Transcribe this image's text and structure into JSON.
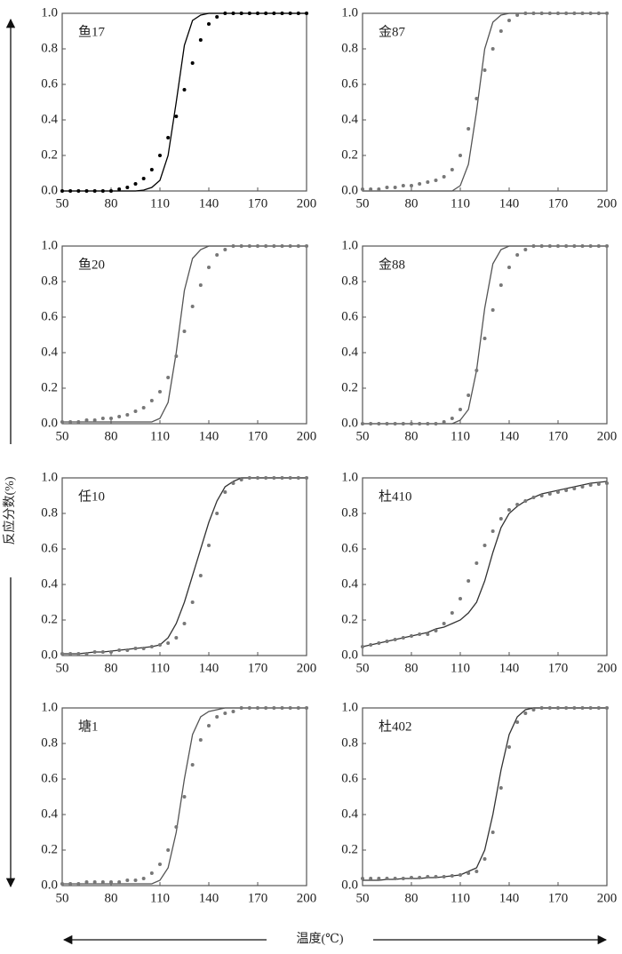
{
  "shared_axes": {
    "xlabel": "温度(℃)",
    "ylabel": "反应分数(%)"
  },
  "chart_data": [
    {
      "type": "line",
      "title": "鱼17",
      "xlim": [
        50,
        200
      ],
      "xticks": [
        50,
        80,
        110,
        140,
        170,
        200
      ],
      "ylim": [
        0,
        1
      ],
      "yticks": [
        {
          "value": 0,
          "label": "0.0"
        },
        {
          "value": 0.2,
          "label": "0.2"
        },
        {
          "value": 0.4,
          "label": "0.4"
        },
        {
          "value": 0.6,
          "label": "0.6"
        },
        {
          "value": 0.8,
          "label": "0.8"
        },
        {
          "value": 1,
          "label": "1.0"
        }
      ],
      "x": [
        50,
        55,
        60,
        65,
        70,
        75,
        80,
        85,
        90,
        95,
        100,
        105,
        110,
        115,
        120,
        125,
        130,
        135,
        140,
        145,
        150,
        155,
        160,
        165,
        170,
        175,
        180,
        185,
        190,
        195,
        200
      ],
      "series": [
        {
          "style": "line",
          "color": "#000000",
          "values": [
            0,
            0,
            0,
            0,
            0,
            0,
            0,
            0,
            0,
            0,
            0.005,
            0.02,
            0.06,
            0.2,
            0.5,
            0.82,
            0.96,
            0.99,
            1,
            1,
            1,
            1,
            1,
            1,
            1,
            1,
            1,
            1,
            1,
            1,
            1
          ]
        },
        {
          "style": "markers",
          "color": "#000000",
          "values": [
            0,
            0,
            0,
            0,
            0,
            0,
            0,
            0.01,
            0.02,
            0.04,
            0.07,
            0.12,
            0.2,
            0.3,
            0.42,
            0.57,
            0.72,
            0.85,
            0.94,
            0.98,
            1,
            1,
            1,
            1,
            1,
            1,
            1,
            1,
            1,
            1,
            1
          ]
        }
      ]
    },
    {
      "type": "line",
      "title": "金87",
      "xlim": [
        50,
        200
      ],
      "xticks": [
        50,
        80,
        110,
        140,
        170,
        200
      ],
      "ylim": [
        0,
        1
      ],
      "yticks": [
        {
          "value": 0,
          "label": "0.0"
        },
        {
          "value": 0.2,
          "label": "0.2"
        },
        {
          "value": 0.4,
          "label": "0.4"
        },
        {
          "value": 0.6,
          "label": "0.6"
        },
        {
          "value": 0.8,
          "label": "0.8"
        },
        {
          "value": 1,
          "label": "1.0"
        }
      ],
      "x": [
        50,
        55,
        60,
        65,
        70,
        75,
        80,
        85,
        90,
        95,
        100,
        105,
        110,
        115,
        120,
        125,
        130,
        135,
        140,
        145,
        150,
        155,
        160,
        165,
        170,
        175,
        180,
        185,
        190,
        195,
        200
      ],
      "series": [
        {
          "style": "line",
          "color": "#555555",
          "values": [
            0,
            0,
            0,
            0,
            0,
            0,
            0,
            0,
            0,
            0,
            0,
            0,
            0.03,
            0.15,
            0.45,
            0.8,
            0.95,
            0.99,
            1,
            1,
            1,
            1,
            1,
            1,
            1,
            1,
            1,
            1,
            1,
            1,
            1
          ]
        },
        {
          "style": "markers",
          "color": "#777777",
          "values": [
            0.01,
            0.01,
            0.01,
            0.02,
            0.02,
            0.03,
            0.03,
            0.04,
            0.05,
            0.06,
            0.08,
            0.12,
            0.2,
            0.35,
            0.52,
            0.68,
            0.8,
            0.9,
            0.96,
            0.99,
            1,
            1,
            1,
            1,
            1,
            1,
            1,
            1,
            1,
            1,
            1
          ]
        }
      ]
    },
    {
      "type": "line",
      "title": "鱼20",
      "xlim": [
        50,
        200
      ],
      "xticks": [
        50,
        80,
        110,
        140,
        170,
        200
      ],
      "ylim": [
        0,
        1
      ],
      "yticks": [
        {
          "value": 0,
          "label": "0.0"
        },
        {
          "value": 0.2,
          "label": "0.2"
        },
        {
          "value": 0.4,
          "label": "0.4"
        },
        {
          "value": 0.6,
          "label": "0.6"
        },
        {
          "value": 0.8,
          "label": "0.8"
        },
        {
          "value": 1,
          "label": "1.0"
        }
      ],
      "x": [
        50,
        55,
        60,
        65,
        70,
        75,
        80,
        85,
        90,
        95,
        100,
        105,
        110,
        115,
        120,
        125,
        130,
        135,
        140,
        145,
        150,
        155,
        160,
        165,
        170,
        175,
        180,
        185,
        190,
        195,
        200
      ],
      "series": [
        {
          "style": "line",
          "color": "#555555",
          "values": [
            0.01,
            0.01,
            0.01,
            0.01,
            0.01,
            0.01,
            0.01,
            0.01,
            0.01,
            0.01,
            0.01,
            0.01,
            0.03,
            0.12,
            0.4,
            0.75,
            0.93,
            0.98,
            1,
            1,
            1,
            1,
            1,
            1,
            1,
            1,
            1,
            1,
            1,
            1,
            1
          ]
        },
        {
          "style": "markers",
          "color": "#777777",
          "values": [
            0.01,
            0.01,
            0.01,
            0.02,
            0.02,
            0.03,
            0.03,
            0.04,
            0.05,
            0.07,
            0.09,
            0.13,
            0.18,
            0.26,
            0.38,
            0.52,
            0.66,
            0.78,
            0.88,
            0.95,
            0.98,
            1,
            1,
            1,
            1,
            1,
            1,
            1,
            1,
            1,
            1
          ]
        }
      ]
    },
    {
      "type": "line",
      "title": "金88",
      "xlim": [
        50,
        200
      ],
      "xticks": [
        50,
        80,
        110,
        140,
        170,
        200
      ],
      "ylim": [
        0,
        1
      ],
      "yticks": [
        {
          "value": 0,
          "label": "0.0"
        },
        {
          "value": 0.2,
          "label": "0.2"
        },
        {
          "value": 0.4,
          "label": "0.4"
        },
        {
          "value": 0.6,
          "label": "0.6"
        },
        {
          "value": 0.8,
          "label": "0.8"
        },
        {
          "value": 1,
          "label": "1.0"
        }
      ],
      "x": [
        50,
        55,
        60,
        65,
        70,
        75,
        80,
        85,
        90,
        95,
        100,
        105,
        110,
        115,
        120,
        125,
        130,
        135,
        140,
        145,
        150,
        155,
        160,
        165,
        170,
        175,
        180,
        185,
        190,
        195,
        200
      ],
      "series": [
        {
          "style": "line",
          "color": "#555555",
          "values": [
            0,
            0,
            0,
            0,
            0,
            0,
            0,
            0,
            0,
            0,
            0,
            0,
            0.02,
            0.08,
            0.3,
            0.65,
            0.9,
            0.98,
            1,
            1,
            1,
            1,
            1,
            1,
            1,
            1,
            1,
            1,
            1,
            1,
            1
          ]
        },
        {
          "style": "markers",
          "color": "#777777",
          "values": [
            0,
            0,
            0,
            0,
            0,
            0,
            0,
            0,
            0,
            0,
            0.01,
            0.03,
            0.08,
            0.16,
            0.3,
            0.48,
            0.64,
            0.78,
            0.88,
            0.95,
            0.98,
            1,
            1,
            1,
            1,
            1,
            1,
            1,
            1,
            1,
            1
          ]
        }
      ]
    },
    {
      "type": "line",
      "title": "任10",
      "xlim": [
        50,
        200
      ],
      "xticks": [
        50,
        80,
        110,
        140,
        170,
        200
      ],
      "ylim": [
        0,
        1
      ],
      "yticks": [
        {
          "value": 0,
          "label": "0.0"
        },
        {
          "value": 0.2,
          "label": "0.2"
        },
        {
          "value": 0.4,
          "label": "0.4"
        },
        {
          "value": 0.6,
          "label": "0.6"
        },
        {
          "value": 0.8,
          "label": "0.8"
        },
        {
          "value": 1,
          "label": "1.0"
        }
      ],
      "x": [
        50,
        55,
        60,
        65,
        70,
        75,
        80,
        85,
        90,
        95,
        100,
        105,
        110,
        115,
        120,
        125,
        130,
        135,
        140,
        145,
        150,
        155,
        160,
        165,
        170,
        175,
        180,
        185,
        190,
        195,
        200
      ],
      "series": [
        {
          "style": "line",
          "color": "#333333",
          "values": [
            0.01,
            0.01,
            0.01,
            0.015,
            0.02,
            0.02,
            0.025,
            0.03,
            0.035,
            0.04,
            0.045,
            0.05,
            0.06,
            0.1,
            0.18,
            0.3,
            0.45,
            0.6,
            0.75,
            0.87,
            0.95,
            0.98,
            1,
            1,
            1,
            1,
            1,
            1,
            1,
            1,
            1
          ]
        },
        {
          "style": "markers",
          "color": "#777777",
          "values": [
            0.01,
            0.01,
            0.01,
            0.01,
            0.02,
            0.02,
            0.02,
            0.03,
            0.03,
            0.04,
            0.04,
            0.05,
            0.06,
            0.07,
            0.1,
            0.18,
            0.3,
            0.45,
            0.62,
            0.8,
            0.92,
            0.97,
            0.99,
            1,
            1,
            1,
            1,
            1,
            1,
            1,
            1
          ]
        }
      ]
    },
    {
      "type": "line",
      "title": "杜410",
      "xlim": [
        50,
        200
      ],
      "xticks": [
        50,
        80,
        110,
        140,
        170,
        200
      ],
      "ylim": [
        0,
        1
      ],
      "yticks": [
        {
          "value": 0,
          "label": "0.0"
        },
        {
          "value": 0.2,
          "label": "0.2"
        },
        {
          "value": 0.4,
          "label": "0.4"
        },
        {
          "value": 0.6,
          "label": "0.6"
        },
        {
          "value": 0.8,
          "label": "0.8"
        },
        {
          "value": 1,
          "label": "1.0"
        }
      ],
      "x": [
        50,
        55,
        60,
        65,
        70,
        75,
        80,
        85,
        90,
        95,
        100,
        105,
        110,
        115,
        120,
        125,
        130,
        135,
        140,
        145,
        150,
        155,
        160,
        165,
        170,
        175,
        180,
        185,
        190,
        195,
        200
      ],
      "series": [
        {
          "style": "line",
          "color": "#333333",
          "values": [
            0.05,
            0.06,
            0.07,
            0.08,
            0.09,
            0.1,
            0.11,
            0.12,
            0.13,
            0.15,
            0.16,
            0.18,
            0.2,
            0.24,
            0.3,
            0.42,
            0.58,
            0.72,
            0.8,
            0.84,
            0.87,
            0.89,
            0.91,
            0.92,
            0.93,
            0.94,
            0.95,
            0.96,
            0.97,
            0.975,
            0.98
          ]
        },
        {
          "style": "markers",
          "color": "#777777",
          "values": [
            0.05,
            0.06,
            0.07,
            0.08,
            0.09,
            0.1,
            0.11,
            0.12,
            0.12,
            0.14,
            0.18,
            0.24,
            0.32,
            0.42,
            0.52,
            0.62,
            0.7,
            0.77,
            0.82,
            0.85,
            0.87,
            0.89,
            0.9,
            0.91,
            0.92,
            0.93,
            0.94,
            0.95,
            0.96,
            0.965,
            0.97
          ]
        }
      ]
    },
    {
      "type": "line",
      "title": "塘1",
      "xlim": [
        50,
        200
      ],
      "xticks": [
        50,
        80,
        110,
        140,
        170,
        200
      ],
      "ylim": [
        0,
        1
      ],
      "yticks": [
        {
          "value": 0,
          "label": "0.0"
        },
        {
          "value": 0.2,
          "label": "0.2"
        },
        {
          "value": 0.4,
          "label": "0.4"
        },
        {
          "value": 0.6,
          "label": "0.6"
        },
        {
          "value": 0.8,
          "label": "0.8"
        },
        {
          "value": 1,
          "label": "1.0"
        }
      ],
      "x": [
        50,
        55,
        60,
        65,
        70,
        75,
        80,
        85,
        90,
        95,
        100,
        105,
        110,
        115,
        120,
        125,
        130,
        135,
        140,
        145,
        150,
        155,
        160,
        165,
        170,
        175,
        180,
        185,
        190,
        195,
        200
      ],
      "series": [
        {
          "style": "line",
          "color": "#555555",
          "values": [
            0.01,
            0.01,
            0.01,
            0.01,
            0.01,
            0.01,
            0.01,
            0.01,
            0.01,
            0.01,
            0.01,
            0.01,
            0.03,
            0.1,
            0.3,
            0.6,
            0.85,
            0.95,
            0.98,
            0.99,
            1,
            1,
            1,
            1,
            1,
            1,
            1,
            1,
            1,
            1,
            1
          ]
        },
        {
          "style": "markers",
          "color": "#777777",
          "values": [
            0.01,
            0.01,
            0.01,
            0.02,
            0.02,
            0.02,
            0.02,
            0.02,
            0.03,
            0.03,
            0.04,
            0.07,
            0.12,
            0.2,
            0.33,
            0.5,
            0.68,
            0.82,
            0.9,
            0.95,
            0.97,
            0.98,
            1,
            1,
            1,
            1,
            1,
            1,
            1,
            1,
            1
          ]
        }
      ]
    },
    {
      "type": "line",
      "title": "杜402",
      "xlim": [
        50,
        200
      ],
      "xticks": [
        50,
        80,
        110,
        140,
        170,
        200
      ],
      "ylim": [
        0,
        1
      ],
      "yticks": [
        {
          "value": 0,
          "label": "0.0"
        },
        {
          "value": 0.2,
          "label": "0.2"
        },
        {
          "value": 0.4,
          "label": "0.4"
        },
        {
          "value": 0.6,
          "label": "0.6"
        },
        {
          "value": 0.8,
          "label": "0.8"
        },
        {
          "value": 1,
          "label": "1.0"
        }
      ],
      "x": [
        50,
        55,
        60,
        65,
        70,
        75,
        80,
        85,
        90,
        95,
        100,
        105,
        110,
        115,
        120,
        125,
        130,
        135,
        140,
        145,
        150,
        155,
        160,
        165,
        170,
        175,
        180,
        185,
        190,
        195,
        200
      ],
      "series": [
        {
          "style": "line",
          "color": "#333333",
          "values": [
            0.03,
            0.03,
            0.03,
            0.035,
            0.035,
            0.04,
            0.04,
            0.04,
            0.045,
            0.045,
            0.05,
            0.055,
            0.06,
            0.08,
            0.1,
            0.2,
            0.4,
            0.65,
            0.85,
            0.95,
            0.99,
            1,
            1,
            1,
            1,
            1,
            1,
            1,
            1,
            1,
            1
          ]
        },
        {
          "style": "markers",
          "color": "#777777",
          "values": [
            0.04,
            0.04,
            0.04,
            0.04,
            0.04,
            0.04,
            0.045,
            0.045,
            0.05,
            0.05,
            0.05,
            0.055,
            0.06,
            0.07,
            0.08,
            0.15,
            0.3,
            0.55,
            0.78,
            0.92,
            0.97,
            0.99,
            1,
            1,
            1,
            1,
            1,
            1,
            1,
            1,
            1
          ]
        }
      ]
    }
  ]
}
